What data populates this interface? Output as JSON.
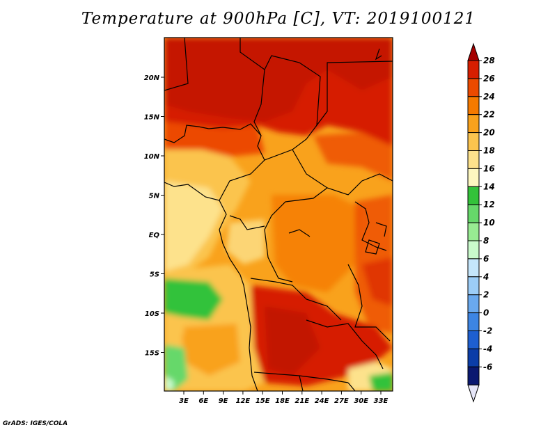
{
  "title": "Temperature at 900hPa [C], VT: 2019100121",
  "credit": "GrADS: IGES/COLA",
  "map": {
    "lon_ticks": [
      "3E",
      "6E",
      "9E",
      "12E",
      "15E",
      "18E",
      "21E",
      "24E",
      "27E",
      "30E",
      "33E"
    ],
    "lat_ticks": [
      "20N",
      "15N",
      "10N",
      "5N",
      "EQ",
      "5S",
      "10S",
      "15S"
    ]
  },
  "colorbar": {
    "levels": [
      "28",
      "26",
      "24",
      "22",
      "20",
      "18",
      "16",
      "14",
      "12",
      "10",
      "8",
      "6",
      "4",
      "2",
      "0",
      "-2",
      "-4",
      "-6"
    ],
    "colors": [
      "#a50000",
      "#d61e00",
      "#ec4a00",
      "#f57a00",
      "#f9a21c",
      "#fbc44e",
      "#fde28c",
      "#fdf7c0",
      "#33c23a",
      "#66d86a",
      "#98ec92",
      "#cafacc",
      "#c5e6fb",
      "#9ccdf7",
      "#6aa9ee",
      "#3d85e3",
      "#1e5fd0",
      "#0b3da8",
      "#0a1870",
      "#e6e6f8"
    ]
  }
}
